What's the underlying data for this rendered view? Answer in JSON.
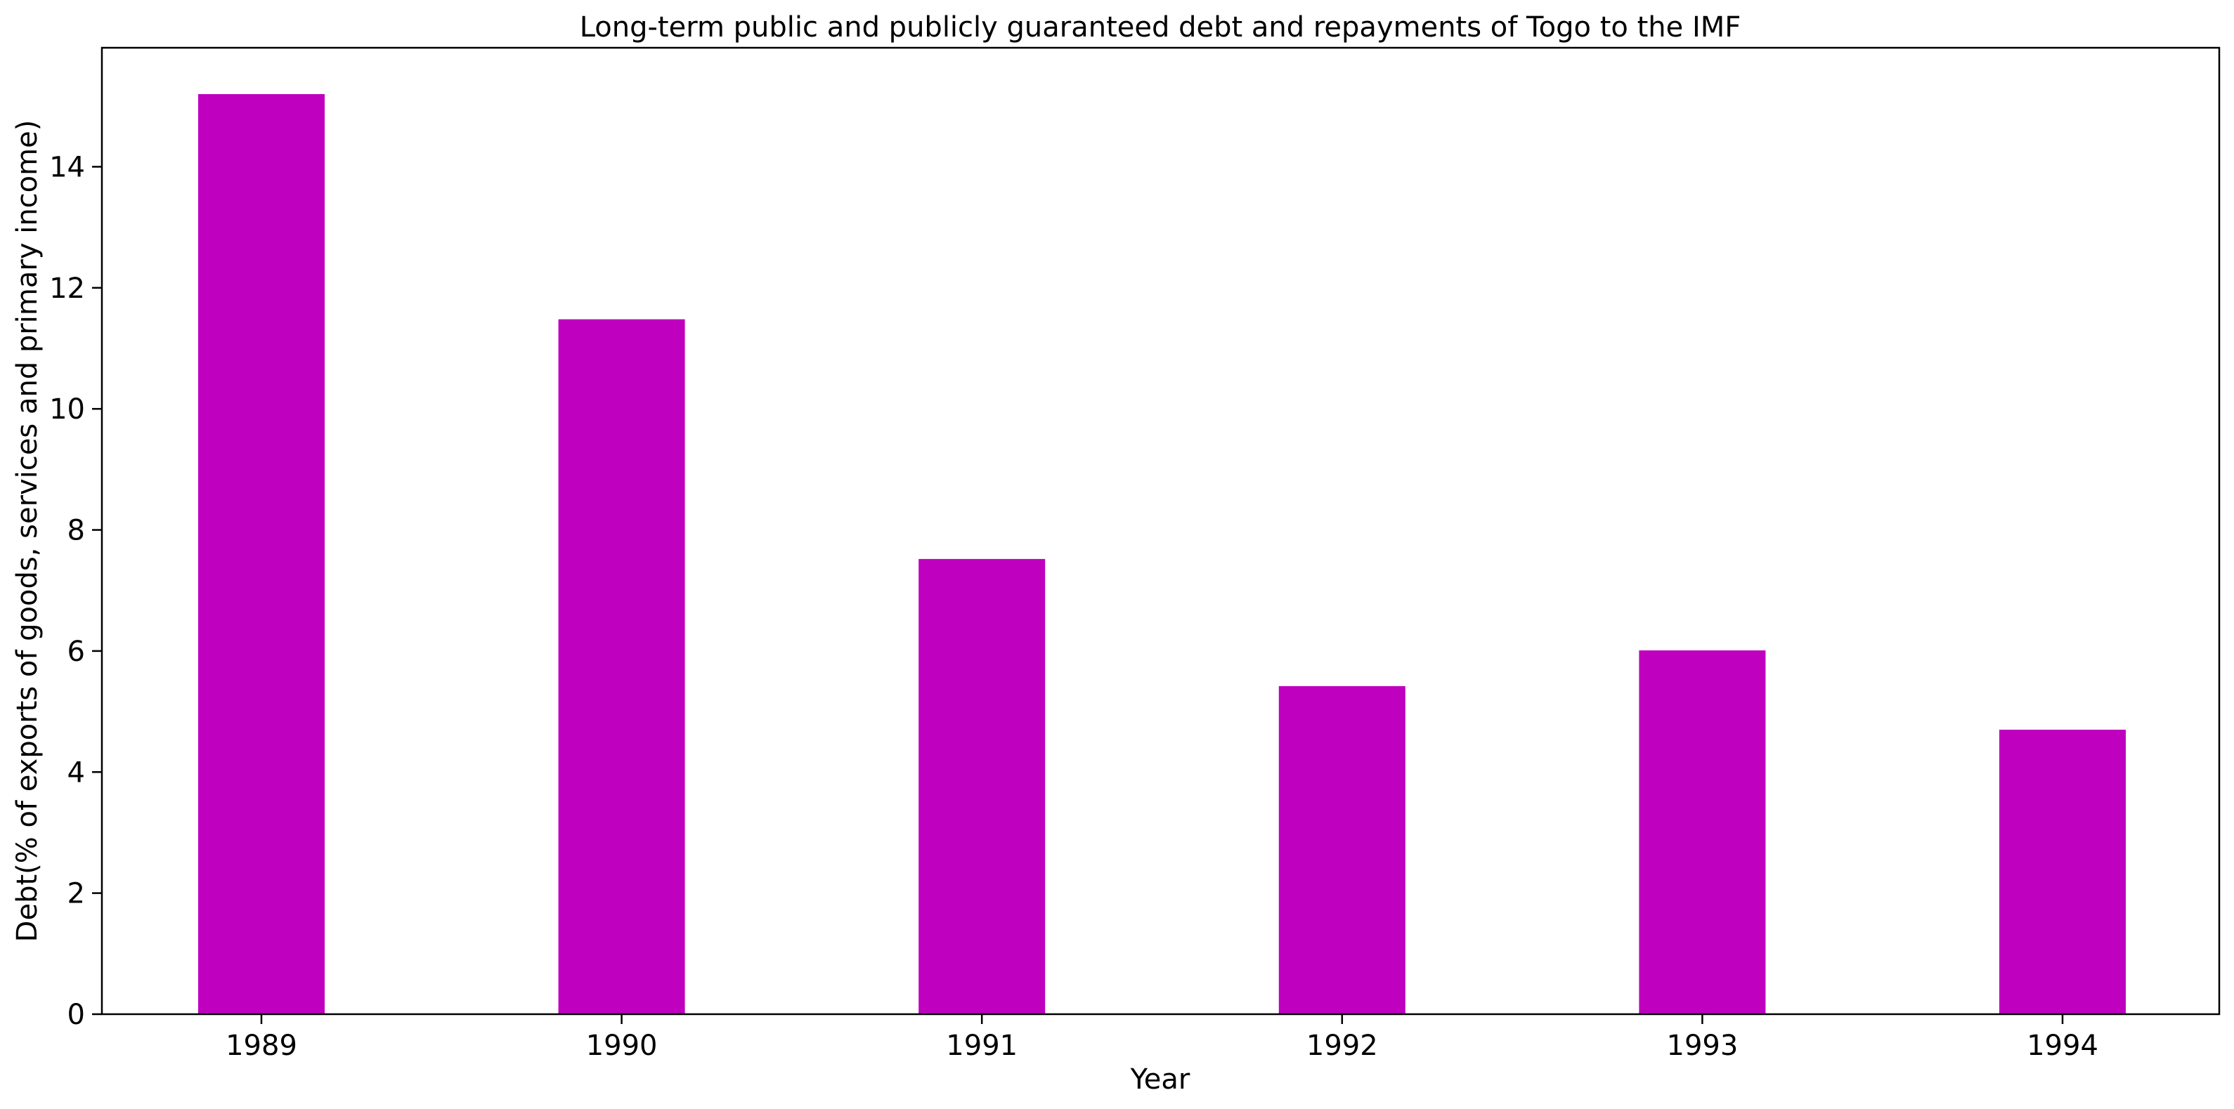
{
  "chart_data": {
    "type": "bar",
    "title": "Long-term public and publicly guaranteed debt and repayments of Togo to the IMF",
    "xlabel": "Year",
    "ylabel": "Debt(% of exports of goods, services and primary income)",
    "categories": [
      "1989",
      "1990",
      "1991",
      "1992",
      "1993",
      "1994"
    ],
    "values": [
      15.2,
      11.48,
      7.52,
      5.42,
      6.01,
      4.7
    ],
    "ylim": [
      0,
      16
    ],
    "yticks": [
      0,
      2,
      4,
      6,
      8,
      10,
      12,
      14
    ],
    "bar_color": "#bf00bf",
    "grid": false,
    "legend": "none"
  }
}
